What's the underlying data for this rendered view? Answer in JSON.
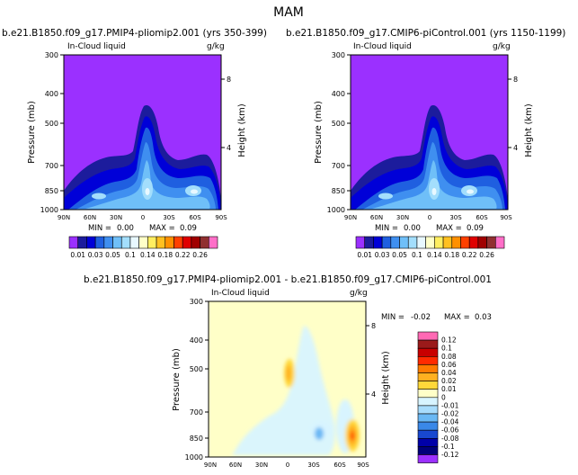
{
  "chart_data": {
    "type": "heatmap",
    "title": "MAM",
    "panels": [
      {
        "id": "p1",
        "case_title": "b.e21.B1850.f09_g17.PMIP4-pliomip2.001  (yrs 350-399)",
        "field": "In-Cloud liquid",
        "units": "g/kg",
        "ylabel": "Pressure (mb)",
        "ylabel_right": "Height (km)",
        "pressure_ticks": [
          "300",
          "400",
          "500",
          "700",
          "850",
          "1000"
        ],
        "height_ticks": [
          "8",
          "4"
        ],
        "lat_ticks": [
          "90N",
          "60N",
          "30N",
          "0",
          "30S",
          "60S",
          "90S"
        ],
        "min_label": "MIN =",
        "min_value": "0.00",
        "max_label": "MAX =",
        "max_value": "0.09"
      },
      {
        "id": "p2",
        "case_title": "b.e21.B1850.f09_g17.CMIP6-piControl.001  (yrs 1150-1199)",
        "field": "In-Cloud liquid",
        "units": "g/kg",
        "ylabel": "Pressure (mb)",
        "ylabel_right": "Height (km)",
        "pressure_ticks": [
          "300",
          "400",
          "500",
          "700",
          "850",
          "1000"
        ],
        "height_ticks": [
          "8",
          "4"
        ],
        "lat_ticks": [
          "90N",
          "60N",
          "30N",
          "0",
          "30S",
          "60S",
          "90S"
        ],
        "min_label": "MIN =",
        "min_value": "0.00",
        "max_label": "MAX =",
        "max_value": "0.09"
      },
      {
        "id": "p3",
        "case_title": "b.e21.B1850.f09_g17.PMIP4-pliomip2.001  -  b.e21.B1850.f09_g17.CMIP6-piControl.001",
        "field": "In-Cloud liquid",
        "units": "g/kg",
        "ylabel": "Pressure (mb)",
        "ylabel_right": "Height (km)",
        "pressure_ticks": [
          "300",
          "400",
          "500",
          "700",
          "850",
          "1000"
        ],
        "height_ticks": [
          "8",
          "4"
        ],
        "lat_ticks": [
          "90N",
          "60N",
          "30N",
          "0",
          "30S",
          "60S",
          "90S"
        ],
        "min_label": "MIN =",
        "min_value": "-0.02",
        "max_label": "MAX =",
        "max_value": "0.03"
      }
    ],
    "colorbar_abs": {
      "labels": [
        "0.01",
        "0.03",
        "0.05",
        "0.1",
        "0.14",
        "0.18",
        "0.22",
        "0.26"
      ],
      "colors": [
        "#9b30ff",
        "#1c1c9c",
        "#0000d8",
        "#1f5fe0",
        "#3f8ff0",
        "#6fbff8",
        "#a3defc",
        "#e8f8ff",
        "#ffffc8",
        "#ffee60",
        "#ffc020",
        "#ff9000",
        "#ff4000",
        "#e00000",
        "#a00000",
        "#903030",
        "#ff6fc8"
      ]
    },
    "colorbar_diff": {
      "labels": [
        "0.12",
        "0.1",
        "0.08",
        "0.06",
        "0.04",
        "0.02",
        "0.01",
        "0",
        "-0.01",
        "-0.02",
        "-0.04",
        "-0.06",
        "-0.08",
        "-0.1",
        "-0.12"
      ],
      "colors": [
        "#ff69b4",
        "#9a1a1a",
        "#c80000",
        "#ff2a00",
        "#ff7a00",
        "#ffb020",
        "#ffd83a",
        "#ffffc8",
        "#d8f4ff",
        "#a8dcfc",
        "#6ab8f4",
        "#3a88e8",
        "#1848d0",
        "#0000a8",
        "#00007a",
        "#9b30ff"
      ]
    }
  }
}
